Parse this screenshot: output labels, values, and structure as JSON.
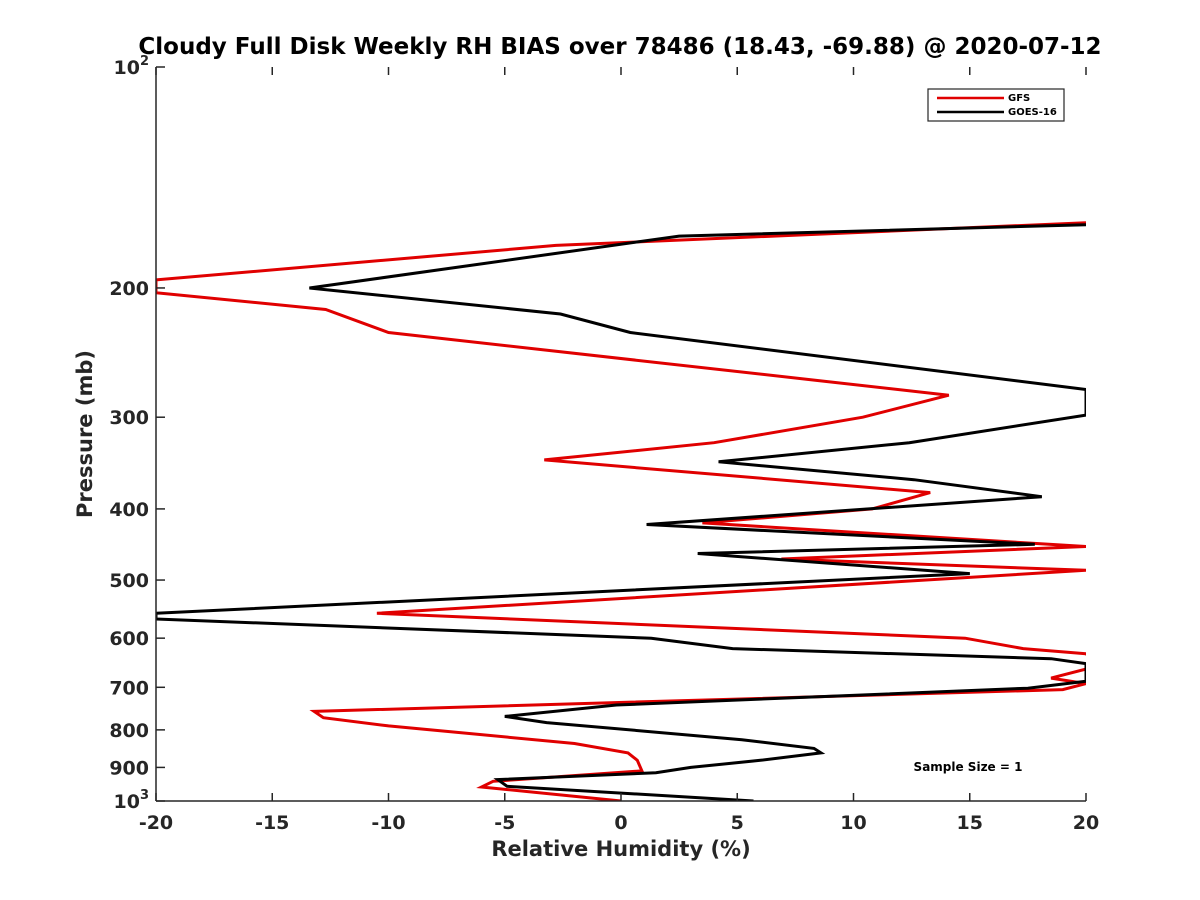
{
  "chart_data": {
    "type": "line",
    "title": "Cloudy Full Disk Weekly RH BIAS over 78486 (18.43, -69.88) @ 2020-07-12",
    "xlabel": "Relative Humidity (%)",
    "ylabel": "Pressure (mb)",
    "xlim": [
      -20,
      20
    ],
    "ylim": [
      100,
      1000
    ],
    "y_scale": "log",
    "y_reversed": true,
    "grid": false,
    "legend_position": "top-right",
    "x_ticks": [
      "-20",
      "-15",
      "-10",
      "-5",
      "0",
      "5",
      "10",
      "15",
      "20"
    ],
    "x_tick_values": [
      -20,
      -15,
      -10,
      -5,
      0,
      5,
      10,
      15,
      20
    ],
    "y_ticks": [
      {
        "value": 100,
        "base": "10",
        "exp": "2"
      },
      {
        "value": 200,
        "label": "200"
      },
      {
        "value": 300,
        "label": "300"
      },
      {
        "value": 400,
        "label": "400"
      },
      {
        "value": 500,
        "label": "500"
      },
      {
        "value": 600,
        "label": "600"
      },
      {
        "value": 700,
        "label": "700"
      },
      {
        "value": 800,
        "label": "800"
      },
      {
        "value": 900,
        "label": "900"
      },
      {
        "value": 1000,
        "base": "10",
        "exp": "3"
      }
    ],
    "series": [
      {
        "name": "GFS",
        "color": "#e00000",
        "points": [
          [
            0.0,
            1000
          ],
          [
            -6.0,
            957
          ],
          [
            -5.5,
            940
          ],
          [
            0.9,
            910
          ],
          [
            0.7,
            880
          ],
          [
            0.3,
            860
          ],
          [
            -2.0,
            835
          ],
          [
            -10.0,
            790
          ],
          [
            -12.8,
            770
          ],
          [
            -13.2,
            755
          ],
          [
            19.0,
            705
          ],
          [
            20.0,
            692
          ],
          [
            18.5,
            680
          ],
          [
            20.5,
            655
          ],
          [
            20.0,
            630
          ],
          [
            17.3,
            620
          ],
          [
            14.8,
            600
          ],
          [
            -10.5,
            555
          ],
          [
            20.0,
            485
          ],
          [
            6.9,
            468
          ],
          [
            20.0,
            450
          ],
          [
            3.5,
            418
          ],
          [
            10.8,
            400
          ],
          [
            13.3,
            380
          ],
          [
            -3.3,
            343
          ],
          [
            4.0,
            325
          ],
          [
            10.4,
            300
          ],
          [
            14.1,
            280
          ],
          [
            -10.0,
            230
          ],
          [
            -12.7,
            214
          ],
          [
            -20.0,
            203
          ],
          [
            -20.0,
            195
          ],
          [
            -2.8,
            175
          ],
          [
            20.0,
            163
          ]
        ]
      },
      {
        "name": "GOES-16",
        "color": "#000000",
        "points": [
          [
            5.7,
            1000
          ],
          [
            -4.9,
            955
          ],
          [
            -5.3,
            935
          ],
          [
            1.5,
            915
          ],
          [
            3.0,
            900
          ],
          [
            6.0,
            880
          ],
          [
            8.6,
            860
          ],
          [
            8.3,
            848
          ],
          [
            5.2,
            825
          ],
          [
            -3.2,
            782
          ],
          [
            -5.0,
            767
          ],
          [
            -0.2,
            740
          ],
          [
            17.5,
            702
          ],
          [
            20.0,
            687
          ],
          [
            20.0,
            650
          ],
          [
            18.5,
            640
          ],
          [
            4.8,
            620
          ],
          [
            1.3,
            600
          ],
          [
            -20.0,
            565
          ],
          [
            -20.0,
            555
          ],
          [
            15.0,
            490
          ],
          [
            3.3,
            460
          ],
          [
            17.8,
            447
          ],
          [
            1.1,
            420
          ],
          [
            18.1,
            385
          ],
          [
            12.6,
            365
          ],
          [
            4.2,
            345
          ],
          [
            12.4,
            325
          ],
          [
            20.0,
            298
          ],
          [
            20.0,
            275
          ],
          [
            0.4,
            230
          ],
          [
            -2.6,
            217
          ],
          [
            -13.4,
            200
          ],
          [
            2.5,
            170
          ],
          [
            20.0,
            164
          ]
        ]
      }
    ],
    "annotations": [
      {
        "text": "Sample Size = 1",
        "x": 15,
        "y": 900
      }
    ]
  }
}
